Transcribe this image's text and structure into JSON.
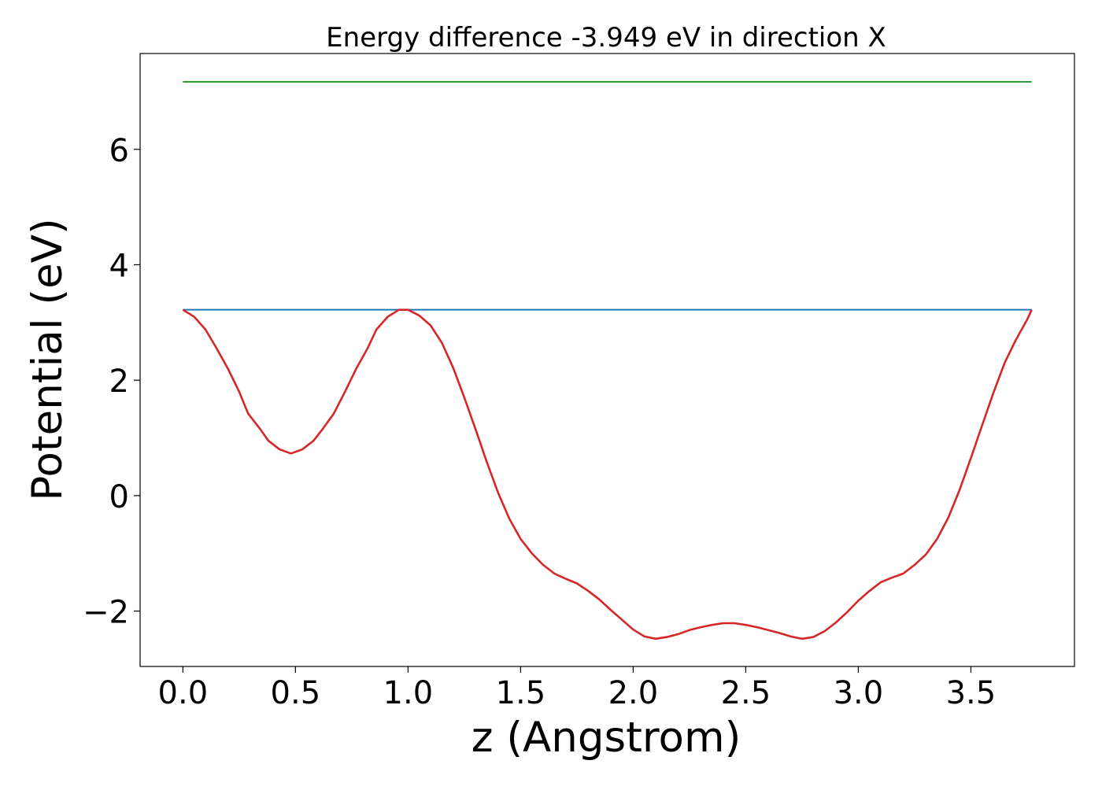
{
  "chart_data": {
    "type": "line",
    "title": "Energy difference -3.949 eV in direction X",
    "xlabel": "z (Angstrom)",
    "ylabel": "Potential (eV)",
    "xlim": [
      -0.19,
      3.96
    ],
    "ylim": [
      -2.96,
      7.66
    ],
    "x_ticks": [
      0.0,
      0.5,
      1.0,
      1.5,
      2.0,
      2.5,
      3.0,
      3.5
    ],
    "x_tick_labels": [
      "0.0",
      "0.5",
      "1.0",
      "1.5",
      "2.0",
      "2.5",
      "3.0",
      "3.5"
    ],
    "y_ticks": [
      -2,
      0,
      2,
      4,
      6
    ],
    "y_tick_labels": [
      "−2",
      "0",
      "2",
      "4",
      "6"
    ],
    "grid": false,
    "series": [
      {
        "color": "#2ca02c",
        "x": [
          0.0,
          3.77
        ],
        "y": [
          7.17,
          7.17
        ]
      },
      {
        "color": "#1f77b4",
        "x": [
          0.0,
          3.77
        ],
        "y": [
          3.22,
          3.22
        ]
      },
      {
        "color": "#d62728",
        "x": [
          0.0,
          0.05,
          0.1,
          0.15,
          0.2,
          0.25,
          0.29,
          0.34,
          0.38,
          0.43,
          0.48,
          0.53,
          0.58,
          0.62,
          0.67,
          0.72,
          0.77,
          0.82,
          0.86,
          0.91,
          0.96,
          1.0,
          1.05,
          1.1,
          1.15,
          1.2,
          1.25,
          1.3,
          1.35,
          1.4,
          1.45,
          1.5,
          1.55,
          1.6,
          1.65,
          1.7,
          1.75,
          1.8,
          1.85,
          1.9,
          1.95,
          2.0,
          2.05,
          2.1,
          2.15,
          2.2,
          2.25,
          2.3,
          2.35,
          2.4,
          2.45,
          2.5,
          2.55,
          2.6,
          2.65,
          2.7,
          2.75,
          2.8,
          2.85,
          2.9,
          2.95,
          3.0,
          3.05,
          3.1,
          3.15,
          3.2,
          3.25,
          3.3,
          3.35,
          3.4,
          3.45,
          3.5,
          3.55,
          3.6,
          3.65,
          3.7,
          3.75,
          3.77
        ],
        "y": [
          3.22,
          3.1,
          2.88,
          2.55,
          2.2,
          1.8,
          1.42,
          1.17,
          0.95,
          0.8,
          0.73,
          0.8,
          0.95,
          1.15,
          1.42,
          1.8,
          2.2,
          2.55,
          2.88,
          3.1,
          3.22,
          3.22,
          3.12,
          2.95,
          2.65,
          2.22,
          1.7,
          1.15,
          0.58,
          0.05,
          -0.4,
          -0.75,
          -1.0,
          -1.2,
          -1.35,
          -1.44,
          -1.52,
          -1.65,
          -1.8,
          -1.98,
          -2.15,
          -2.32,
          -2.44,
          -2.48,
          -2.45,
          -2.4,
          -2.33,
          -2.28,
          -2.24,
          -2.21,
          -2.21,
          -2.24,
          -2.28,
          -2.33,
          -2.38,
          -2.44,
          -2.48,
          -2.45,
          -2.35,
          -2.2,
          -2.02,
          -1.82,
          -1.65,
          -1.5,
          -1.42,
          -1.35,
          -1.2,
          -1.02,
          -0.75,
          -0.38,
          0.1,
          0.65,
          1.22,
          1.78,
          2.3,
          2.7,
          3.05,
          3.22
        ]
      }
    ]
  }
}
